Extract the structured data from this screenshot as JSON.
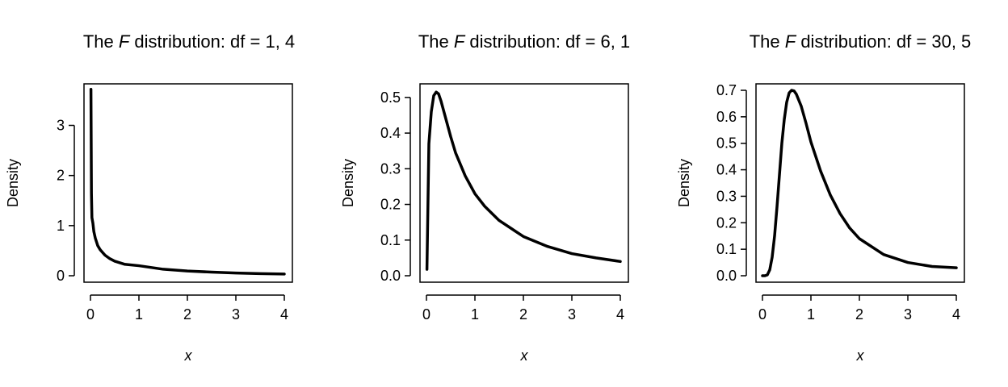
{
  "chart_data": [
    {
      "type": "line",
      "title_prefix": "The ",
      "title_italic": "F",
      "title_suffix": " distribution: df = 1, 4",
      "xlabel": "x",
      "ylabel": "Density",
      "xlim": [
        0,
        4
      ],
      "ylim": [
        0,
        3.7
      ],
      "xticks": [
        0,
        1,
        2,
        3,
        4
      ],
      "yticks": [
        0,
        1,
        2,
        3
      ],
      "grid": false,
      "series": [
        {
          "x": [
            0.01,
            0.02,
            0.03,
            0.05,
            0.07,
            0.1,
            0.15,
            0.2,
            0.3,
            0.4,
            0.5,
            0.7,
            1.0,
            1.5,
            2.0,
            2.5,
            3.0,
            3.5,
            4.0
          ],
          "y": [
            3.72,
            1.64,
            1.16,
            1.05,
            0.88,
            0.75,
            0.6,
            0.52,
            0.41,
            0.34,
            0.29,
            0.23,
            0.2,
            0.13,
            0.095,
            0.072,
            0.055,
            0.043,
            0.035
          ]
        }
      ]
    },
    {
      "type": "line",
      "title_prefix": "The ",
      "title_italic": "F",
      "title_suffix": " distribution: df = 6, 1",
      "xlabel": "x",
      "ylabel": "Density",
      "xlim": [
        0,
        4
      ],
      "ylim": [
        0,
        0.52
      ],
      "xticks": [
        0,
        1,
        2,
        3,
        4
      ],
      "yticks": [
        0.0,
        0.1,
        0.2,
        0.3,
        0.4,
        0.5
      ],
      "grid": false,
      "series": [
        {
          "x": [
            0.01,
            0.05,
            0.1,
            0.15,
            0.2,
            0.25,
            0.3,
            0.4,
            0.5,
            0.6,
            0.8,
            1.0,
            1.2,
            1.5,
            2.0,
            2.5,
            3.0,
            3.5,
            4.0
          ],
          "y": [
            0.018,
            0.37,
            0.46,
            0.505,
            0.515,
            0.51,
            0.49,
            0.44,
            0.39,
            0.345,
            0.28,
            0.23,
            0.195,
            0.155,
            0.11,
            0.082,
            0.062,
            0.05,
            0.04
          ]
        }
      ]
    },
    {
      "type": "line",
      "title_prefix": "The ",
      "title_italic": "F",
      "title_suffix": " distribution: df = 30, 5",
      "xlabel": "x",
      "ylabel": "Density",
      "xlim": [
        0,
        4
      ],
      "ylim": [
        0,
        0.7
      ],
      "xticks": [
        0,
        1,
        2,
        3,
        4
      ],
      "yticks": [
        0.0,
        0.1,
        0.2,
        0.3,
        0.4,
        0.5,
        0.6,
        0.7
      ],
      "grid": false,
      "series": [
        {
          "x": [
            0.0,
            0.05,
            0.1,
            0.15,
            0.2,
            0.25,
            0.3,
            0.35,
            0.4,
            0.45,
            0.5,
            0.55,
            0.6,
            0.65,
            0.7,
            0.8,
            0.9,
            1.0,
            1.2,
            1.4,
            1.6,
            1.8,
            2.0,
            2.5,
            3.0,
            3.5,
            4.0
          ],
          "y": [
            0.0,
            0.0,
            0.003,
            0.022,
            0.07,
            0.15,
            0.26,
            0.38,
            0.5,
            0.59,
            0.655,
            0.69,
            0.7,
            0.698,
            0.685,
            0.64,
            0.575,
            0.505,
            0.395,
            0.305,
            0.235,
            0.18,
            0.14,
            0.08,
            0.05,
            0.035,
            0.03
          ]
        }
      ]
    }
  ]
}
